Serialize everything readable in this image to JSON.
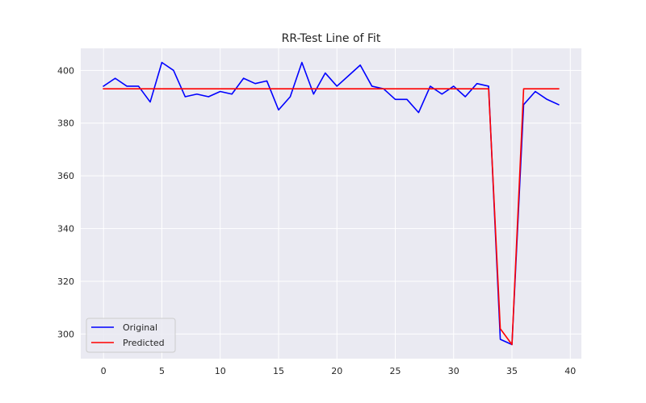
{
  "chart_data": {
    "type": "line",
    "title": "RR-Test Line of Fit",
    "xlabel": "",
    "ylabel": "",
    "xlim": [
      -1.95,
      40.95
    ],
    "ylim": [
      290.65,
      408.35
    ],
    "xticks": [
      0,
      5,
      10,
      15,
      20,
      25,
      30,
      35,
      40
    ],
    "yticks": [
      300,
      320,
      340,
      360,
      380,
      400
    ],
    "grid": true,
    "legend_position": "lower-left",
    "series": [
      {
        "name": "Original",
        "color": "#0000ff",
        "x": [
          0,
          1,
          2,
          3,
          4,
          5,
          6,
          7,
          8,
          9,
          10,
          11,
          12,
          13,
          14,
          15,
          16,
          17,
          18,
          19,
          20,
          21,
          22,
          23,
          24,
          25,
          26,
          27,
          28,
          29,
          30,
          31,
          32,
          33,
          34,
          35,
          36,
          37,
          38,
          39
        ],
        "values": [
          394,
          397,
          394,
          394,
          388,
          403,
          400,
          390,
          391,
          390,
          392,
          391,
          397,
          395,
          396,
          385,
          390,
          403,
          391,
          399,
          394,
          398,
          402,
          394,
          393,
          389,
          389,
          384,
          394,
          391,
          394,
          390,
          395,
          394,
          298,
          296,
          387,
          392,
          389,
          387
        ]
      },
      {
        "name": "Predicted",
        "color": "#ff0000",
        "x": [
          0,
          1,
          2,
          3,
          4,
          5,
          6,
          7,
          8,
          9,
          10,
          11,
          12,
          13,
          14,
          15,
          16,
          17,
          18,
          19,
          20,
          21,
          22,
          23,
          24,
          25,
          26,
          27,
          28,
          29,
          30,
          31,
          32,
          33,
          34,
          35,
          36,
          37,
          38,
          39
        ],
        "values": [
          393,
          393,
          393,
          393,
          393,
          393,
          393,
          393,
          393,
          393,
          393,
          393,
          393,
          393,
          393,
          393,
          393,
          393,
          393,
          393,
          393,
          393,
          393,
          393,
          393,
          393,
          393,
          393,
          393,
          393,
          393,
          393,
          393,
          393,
          302,
          296,
          393,
          393,
          393,
          393
        ]
      }
    ]
  }
}
